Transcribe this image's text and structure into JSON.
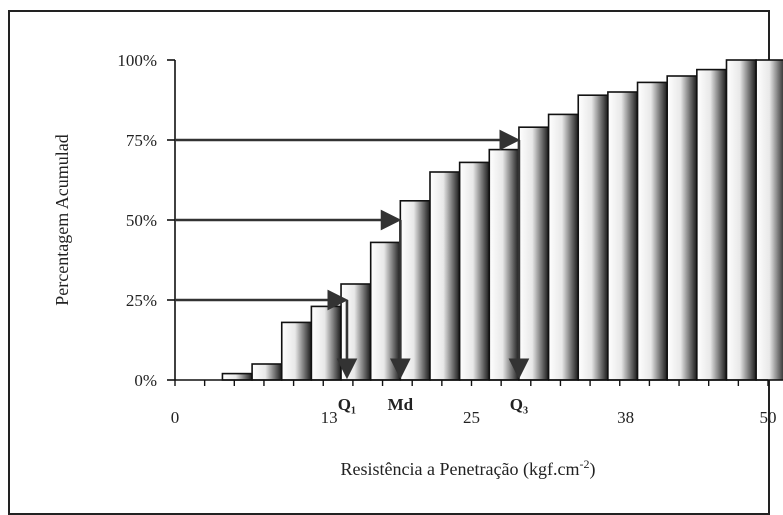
{
  "chart_data": {
    "type": "bar",
    "subtype": "cumulative-histogram",
    "xlabel": "Resistência a Penetração (kgf.cm",
    "xlabel_superscript": "-2",
    "xlabel_suffix": ")",
    "ylabel": "Percentagem Acumulad",
    "ylim": [
      0,
      100
    ],
    "xlim": [
      0,
      50
    ],
    "y_ticks": [
      "0%",
      "25%",
      "50%",
      "75%",
      "100%"
    ],
    "x_ticks": [
      "0",
      "13",
      "25",
      "38",
      "50"
    ],
    "bar_width": 2.5,
    "bar_start_x": [
      4,
      6.5,
      9,
      11.5,
      14,
      16.5,
      19,
      21.5,
      24,
      26.5,
      29,
      31.5,
      34,
      36.5,
      39,
      41.5,
      44,
      46.5,
      49
    ],
    "values": [
      2,
      5,
      18,
      23,
      30,
      43,
      56,
      65,
      68,
      72,
      79,
      83,
      89,
      90,
      93,
      95,
      97,
      100,
      100
    ],
    "arrows": [
      {
        "level": 25,
        "x": 14.5,
        "label": "Q₁"
      },
      {
        "level": 50,
        "x": 19,
        "label": "Md"
      },
      {
        "level": 75,
        "x": 29,
        "label": "Q₃"
      }
    ],
    "legend": "none",
    "grid": false
  }
}
